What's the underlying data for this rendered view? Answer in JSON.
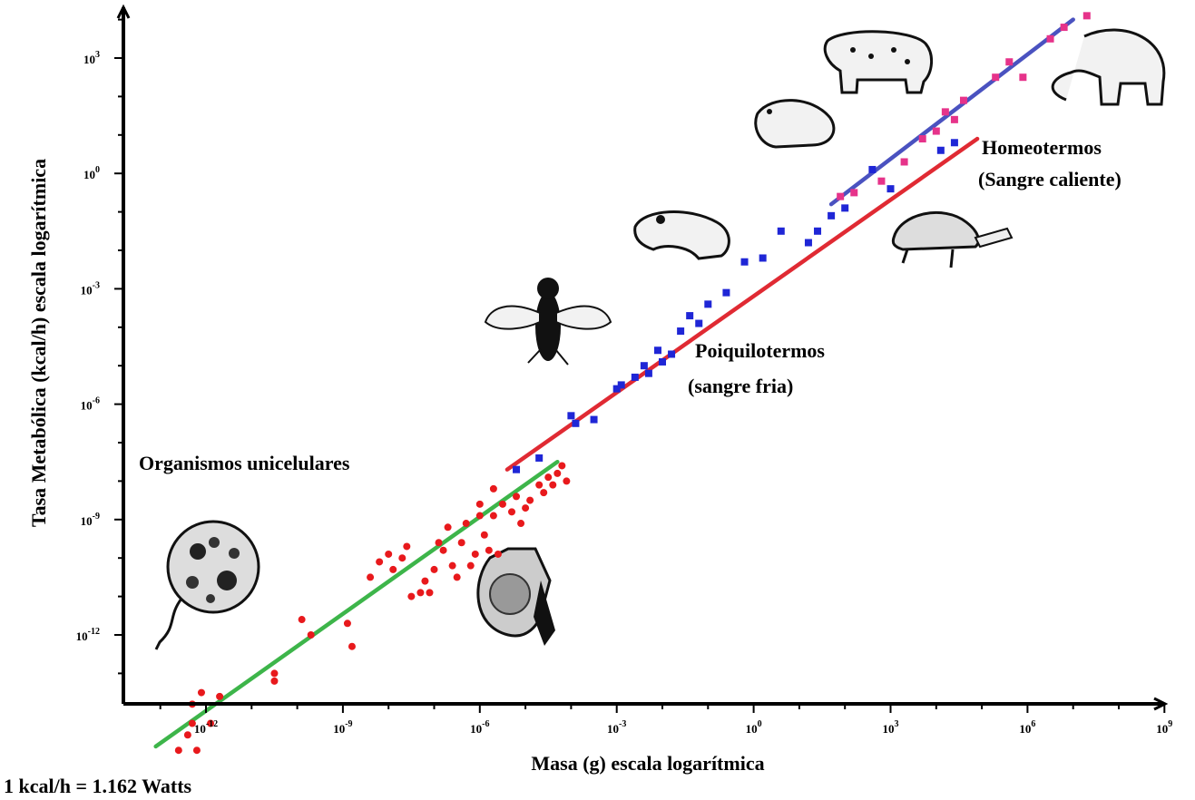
{
  "footnote": "1 kcal/h = 1.162 Watts",
  "chart_data": {
    "type": "scatter",
    "title": "",
    "xlabel": "Masa (g) escala logarítmica",
    "ylabel": "Tasa Metabólica (kcal/h) escala logarítmica",
    "xscale": "log",
    "yscale": "log",
    "xlim_log10": [
      -14,
      9.5
    ],
    "ylim_log10": [
      -15.2,
      4.3
    ],
    "xticks": [
      {
        "base": "10",
        "exp": "-12",
        "log10": -12
      },
      {
        "base": "10",
        "exp": "-9",
        "log10": -9
      },
      {
        "base": "10",
        "exp": "-6",
        "log10": -6
      },
      {
        "base": "10",
        "exp": "-3",
        "log10": -3
      },
      {
        "base": "10",
        "exp": "0",
        "log10": 0
      },
      {
        "base": "10",
        "exp": "3",
        "log10": 3
      },
      {
        "base": "10",
        "exp": "6",
        "log10": 6
      },
      {
        "base": "10",
        "exp": "9",
        "log10": 9
      }
    ],
    "yticks": [
      {
        "base": "10",
        "exp": "3",
        "log10": 3
      },
      {
        "base": "10",
        "exp": "0",
        "log10": 0
      },
      {
        "base": "10",
        "exp": "-3",
        "log10": -3
      },
      {
        "base": "10",
        "exp": "-6",
        "log10": -6
      },
      {
        "base": "10",
        "exp": "-9",
        "log10": -9
      },
      {
        "base": "10",
        "exp": "-12",
        "log10": -12
      }
    ],
    "grid": false,
    "series": [
      {
        "name": "Organismos unicelulares",
        "color": "#e8191c",
        "marker": "circle",
        "fit_color": "#3db54a",
        "fit_log10": [
          [
            -13.1,
            -14.9
          ],
          [
            -4.3,
            -7.5
          ]
        ],
        "points_log10": [
          [
            -12.6,
            -15.0
          ],
          [
            -12.4,
            -14.6
          ],
          [
            -12.3,
            -14.3
          ],
          [
            -12.2,
            -15.0
          ],
          [
            -12.3,
            -13.8
          ],
          [
            -12.1,
            -13.5
          ],
          [
            -11.9,
            -14.3
          ],
          [
            -11.7,
            -13.6
          ],
          [
            -10.5,
            -13.0
          ],
          [
            -10.5,
            -13.2
          ],
          [
            -9.9,
            -11.6
          ],
          [
            -9.7,
            -12.0
          ],
          [
            -8.9,
            -11.7
          ],
          [
            -8.8,
            -12.3
          ],
          [
            -8.4,
            -10.5
          ],
          [
            -8.2,
            -10.1
          ],
          [
            -8.0,
            -9.9
          ],
          [
            -7.9,
            -10.3
          ],
          [
            -7.7,
            -10.0
          ],
          [
            -7.6,
            -9.7
          ],
          [
            -7.5,
            -11.0
          ],
          [
            -7.3,
            -10.9
          ],
          [
            -7.2,
            -10.6
          ],
          [
            -7.1,
            -10.9
          ],
          [
            -7.0,
            -10.3
          ],
          [
            -6.9,
            -9.6
          ],
          [
            -6.8,
            -9.8
          ],
          [
            -6.7,
            -9.2
          ],
          [
            -6.6,
            -10.2
          ],
          [
            -6.5,
            -10.5
          ],
          [
            -6.4,
            -9.6
          ],
          [
            -6.3,
            -9.1
          ],
          [
            -6.2,
            -10.2
          ],
          [
            -6.1,
            -9.9
          ],
          [
            -6.0,
            -8.6
          ],
          [
            -5.9,
            -9.4
          ],
          [
            -5.8,
            -9.8
          ],
          [
            -5.7,
            -8.9
          ],
          [
            -5.6,
            -9.9
          ],
          [
            -5.5,
            -8.6
          ],
          [
            -5.3,
            -8.8
          ],
          [
            -5.2,
            -8.4
          ],
          [
            -5.1,
            -9.1
          ],
          [
            -5.0,
            -8.7
          ],
          [
            -4.9,
            -8.5
          ],
          [
            -4.7,
            -8.1
          ],
          [
            -4.6,
            -8.3
          ],
          [
            -4.5,
            -7.9
          ],
          [
            -4.4,
            -8.1
          ],
          [
            -4.3,
            -7.8
          ],
          [
            -4.2,
            -7.6
          ],
          [
            -4.1,
            -8.0
          ],
          [
            -5.7,
            -8.2
          ],
          [
            -6.0,
            -8.9
          ]
        ]
      },
      {
        "name": "Poiquilotermos (sangre fria)",
        "color": "#1f26d6",
        "marker": "square",
        "fit_color": "#e02a33",
        "fit_log10": [
          [
            -5.4,
            -7.7
          ],
          [
            4.9,
            0.9
          ]
        ],
        "points_log10": [
          [
            -5.2,
            -7.7
          ],
          [
            -4.7,
            -7.4
          ],
          [
            -4.0,
            -6.3
          ],
          [
            -3.9,
            -6.5
          ],
          [
            -3.5,
            -6.4
          ],
          [
            -3.0,
            -5.6
          ],
          [
            -2.9,
            -5.5
          ],
          [
            -2.6,
            -5.3
          ],
          [
            -2.4,
            -5.0
          ],
          [
            -2.3,
            -5.2
          ],
          [
            -2.1,
            -4.6
          ],
          [
            -2.0,
            -4.9
          ],
          [
            -1.8,
            -4.7
          ],
          [
            -1.6,
            -4.1
          ],
          [
            -1.4,
            -3.7
          ],
          [
            -1.2,
            -3.9
          ],
          [
            -1.0,
            -3.4
          ],
          [
            -0.6,
            -3.1
          ],
          [
            -0.2,
            -2.3
          ],
          [
            0.2,
            -2.2
          ],
          [
            0.6,
            -1.5
          ],
          [
            1.2,
            -1.8
          ],
          [
            1.4,
            -1.5
          ],
          [
            1.7,
            -1.1
          ],
          [
            2.0,
            -0.9
          ],
          [
            2.6,
            0.1
          ],
          [
            3.0,
            -0.4
          ],
          [
            4.1,
            0.6
          ],
          [
            4.4,
            0.8
          ]
        ]
      },
      {
        "name": "Homeotermos (Sangre caliente)",
        "color": "#e6338a",
        "marker": "square",
        "fit_color": "#4a52c0",
        "fit_log10": [
          [
            1.7,
            -0.8
          ],
          [
            7.0,
            4.0
          ]
        ],
        "points_log10": [
          [
            1.9,
            -0.6
          ],
          [
            2.2,
            -0.5
          ],
          [
            2.8,
            -0.2
          ],
          [
            3.3,
            0.3
          ],
          [
            3.7,
            0.9
          ],
          [
            4.0,
            1.1
          ],
          [
            4.2,
            1.6
          ],
          [
            4.4,
            1.4
          ],
          [
            4.6,
            1.9
          ],
          [
            5.3,
            2.5
          ],
          [
            5.6,
            2.9
          ],
          [
            5.9,
            2.5
          ],
          [
            6.5,
            3.5
          ],
          [
            6.8,
            3.8
          ],
          [
            7.3,
            4.1
          ]
        ]
      }
    ],
    "annotations": [
      {
        "text": "Organismos unicelulares",
        "pos_log10": [
          -11.3,
          -8.3
        ]
      },
      {
        "text": "Poiquilotermos",
        "pos_log10": [
          -2.5,
          -5.4
        ]
      },
      {
        "text": "(sangre fria)",
        "pos_log10": [
          -2.8,
          -6.2
        ]
      },
      {
        "text": "Homeotermos",
        "pos_log10": [
          4.7,
          0.8
        ]
      },
      {
        "text": "(Sangre caliente)",
        "pos_log10": [
          4.7,
          -0.3
        ]
      }
    ],
    "illustrations": [
      "amoeba-icon",
      "cell-icon",
      "fly-icon",
      "frog-icon",
      "rat-icon",
      "leopard-icon",
      "tortoise-icon",
      "elephant-icon"
    ]
  }
}
